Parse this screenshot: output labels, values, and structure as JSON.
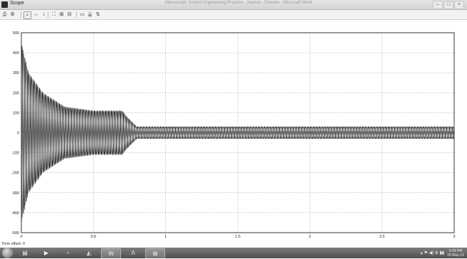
{
  "window": {
    "title": "Scope",
    "doc_title": "Manuscript: Control Engineering Practice - Journal - Elsevier - Microsoft Word",
    "minimize": "–",
    "maximize": "□",
    "close": "×"
  },
  "toolbar": {
    "icons": [
      "print-icon",
      "params-icon",
      "zoom-icon",
      "zoom-x-icon",
      "zoom-y-icon",
      "autoscale-icon",
      "save-axes-icon",
      "restore-axes-icon",
      "floating-scope-icon",
      "lock-icon",
      "select-signals-icon"
    ]
  },
  "status": {
    "time_offset": "Time offset:  0"
  },
  "taskbar": {
    "apps": [
      "folder-icon",
      "media-player-icon",
      "chrome-icon",
      "matlab-icon",
      "word-icon",
      "acrobat-icon",
      "simulink-icon"
    ],
    "active_app": "simulink-icon",
    "clock_time": "5:24 PM",
    "clock_date": "20-May-13"
  },
  "chart_data": {
    "type": "line",
    "title": "",
    "xlabel": "",
    "ylabel": "",
    "xlim": [
      0,
      3
    ],
    "ylim": [
      -500,
      500
    ],
    "xticks": [
      "0",
      "0.5",
      "1",
      "1.5",
      "2",
      "2.5",
      "3"
    ],
    "yticks": [
      "500",
      "400",
      "300",
      "200",
      "100",
      "0",
      "-100",
      "-200",
      "-300",
      "-400",
      "-500"
    ],
    "grid": true,
    "series": [
      {
        "style": "three-phase oscillation",
        "envelope": [
          {
            "x": 0,
            "y": 450
          },
          {
            "x": 0.05,
            "y": 300
          },
          {
            "x": 0.15,
            "y": 200
          },
          {
            "x": 0.3,
            "y": 130
          },
          {
            "x": 0.5,
            "y": 110
          },
          {
            "x": 0.7,
            "y": 110
          },
          {
            "x": 0.73,
            "y": 80
          },
          {
            "x": 0.8,
            "y": 30
          },
          {
            "x": 3.0,
            "y": 30
          }
        ],
        "frequency_hz": 50
      }
    ]
  }
}
